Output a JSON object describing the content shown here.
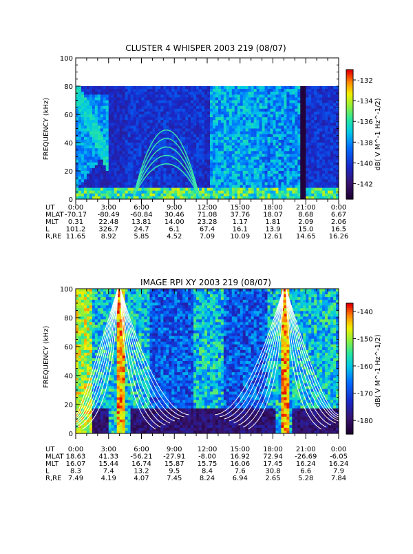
{
  "chart_data": [
    {
      "type": "heatmap",
      "title": "CLUSTER 4 WHISPER 2003 219 (08/07)",
      "ylabel": "FREQUENCY (kHz)",
      "ylim": [
        0,
        100
      ],
      "y_ticks": [
        "0",
        "20",
        "40",
        "60",
        "80",
        "100"
      ],
      "data_top_khz": 80,
      "colorbar": {
        "label": "dB( V M⁻¹ Hz⁻¹ᐟ²)",
        "label_text": "dB( V M^-1 Hz^-1/2)",
        "ticks": [
          "-132",
          "-134",
          "-136",
          "-138",
          "-140",
          "-142"
        ],
        "range": [
          -143.5,
          -131
        ]
      },
      "x_tick_labels": [
        "0:00",
        "3:00",
        "6:00",
        "9:00",
        "12:00",
        "15:00",
        "18:00",
        "21:00",
        "0:00"
      ],
      "ephemeris": [
        {
          "name": "UT",
          "values": [
            "0:00",
            "3:00",
            "6:00",
            "9:00",
            "12:00",
            "15:00",
            "18:00",
            "21:00",
            "0:00"
          ]
        },
        {
          "name": "MLAT",
          "values": [
            "-70.17",
            "-80.49",
            "-60.84",
            "30.46",
            "71.08",
            "37.76",
            "18.07",
            "8.68",
            "6.67"
          ]
        },
        {
          "name": "MLT",
          "values": [
            "0.31",
            "22.48",
            "13.81",
            "14.00",
            "23.28",
            "1.17",
            "1.81",
            "2.09",
            "2.06"
          ]
        },
        {
          "name": "L",
          "values": [
            "101.2",
            "326.7",
            "24.7",
            "6.1",
            "67.4",
            "16.1",
            "13.9",
            "15.0",
            "16.5"
          ]
        },
        {
          "name": "R,RE",
          "values": [
            "11.65",
            "8.92",
            "5.85",
            "4.52",
            "7.09",
            "10.09",
            "12.61",
            "14.65",
            "16.26"
          ]
        }
      ]
    },
    {
      "type": "heatmap",
      "title": "IMAGE RPI XY 2003 219 (08/07)",
      "ylabel": "FREQUENCY (kHz)",
      "ylim": [
        0,
        100
      ],
      "y_ticks": [
        "0",
        "20",
        "40",
        "60",
        "80",
        "100"
      ],
      "colorbar": {
        "label_text": "dB( V M^-1 Hz^-1/2)",
        "ticks": [
          "-140",
          "-150",
          "-160",
          "-170",
          "-180"
        ],
        "range": [
          -185,
          -137
        ]
      },
      "x_tick_labels": [
        "0:00",
        "3:00",
        "6:00",
        "9:00",
        "12:00",
        "15:00",
        "18:00",
        "21:00",
        "0:00"
      ],
      "ephemeris": [
        {
          "name": "UT",
          "values": [
            "0:00",
            "3:00",
            "6:00",
            "9:00",
            "12:00",
            "15:00",
            "18:00",
            "21:00",
            "0:00"
          ]
        },
        {
          "name": "MLAT",
          "values": [
            "18.63",
            "41.33",
            "-56.21",
            "-27.91",
            "-8.00",
            "16.92",
            "72.94",
            "-26.69",
            "-6.05"
          ]
        },
        {
          "name": "MLT",
          "values": [
            "16.07",
            "15.44",
            "16.74",
            "15.87",
            "15.75",
            "16.06",
            "17.45",
            "16.24",
            "16.24"
          ]
        },
        {
          "name": "L",
          "values": [
            "8.3",
            "7.4",
            "13.2",
            "9.5",
            "8.4",
            "7.6",
            "30.8",
            "6.6",
            "7.9"
          ]
        },
        {
          "name": "R,RE",
          "values": [
            "7.49",
            "4.19",
            "4.07",
            "7.45",
            "8.24",
            "6.94",
            "2.65",
            "5.28",
            "7.84"
          ]
        }
      ]
    }
  ]
}
